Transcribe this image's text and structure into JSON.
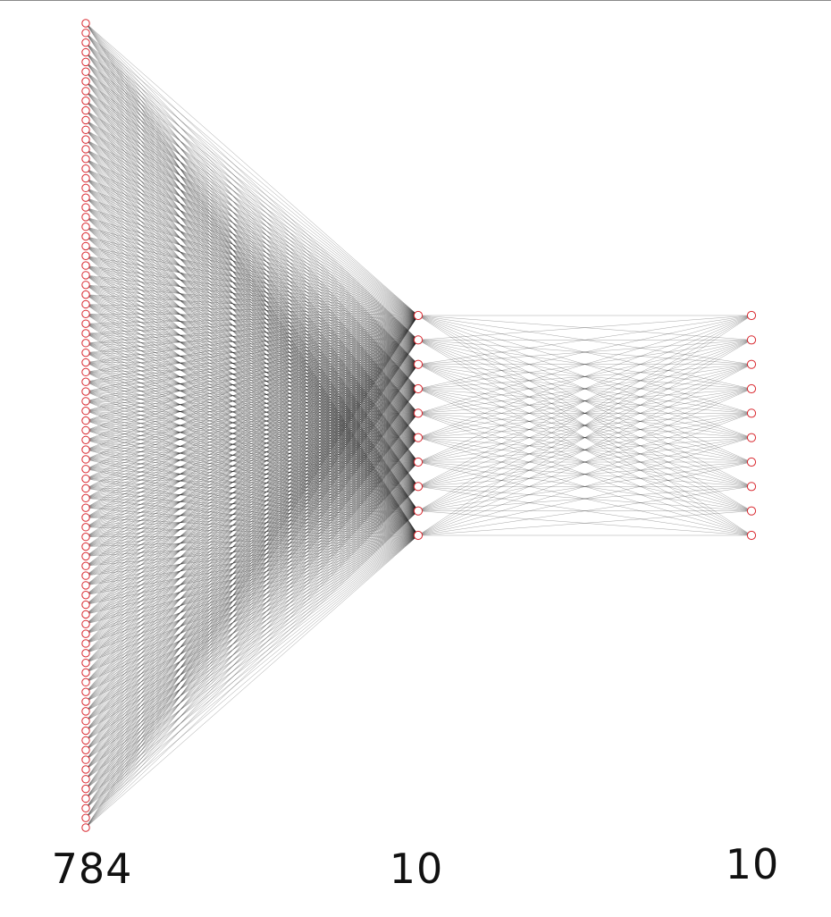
{
  "diagram": {
    "type": "neural-network-architecture",
    "layers": [
      {
        "size": 784,
        "label": "784",
        "rendered_nodes": 84
      },
      {
        "size": 10,
        "label": "10",
        "rendered_nodes": 10
      },
      {
        "size": 10,
        "label": "10",
        "rendered_nodes": 10
      }
    ],
    "connectivity": "fully-connected",
    "colors": {
      "node_stroke": "#d9282f",
      "node_fill": "#ffffff",
      "edge": "#000000",
      "label": "#111111",
      "background": "#ffffff"
    }
  }
}
